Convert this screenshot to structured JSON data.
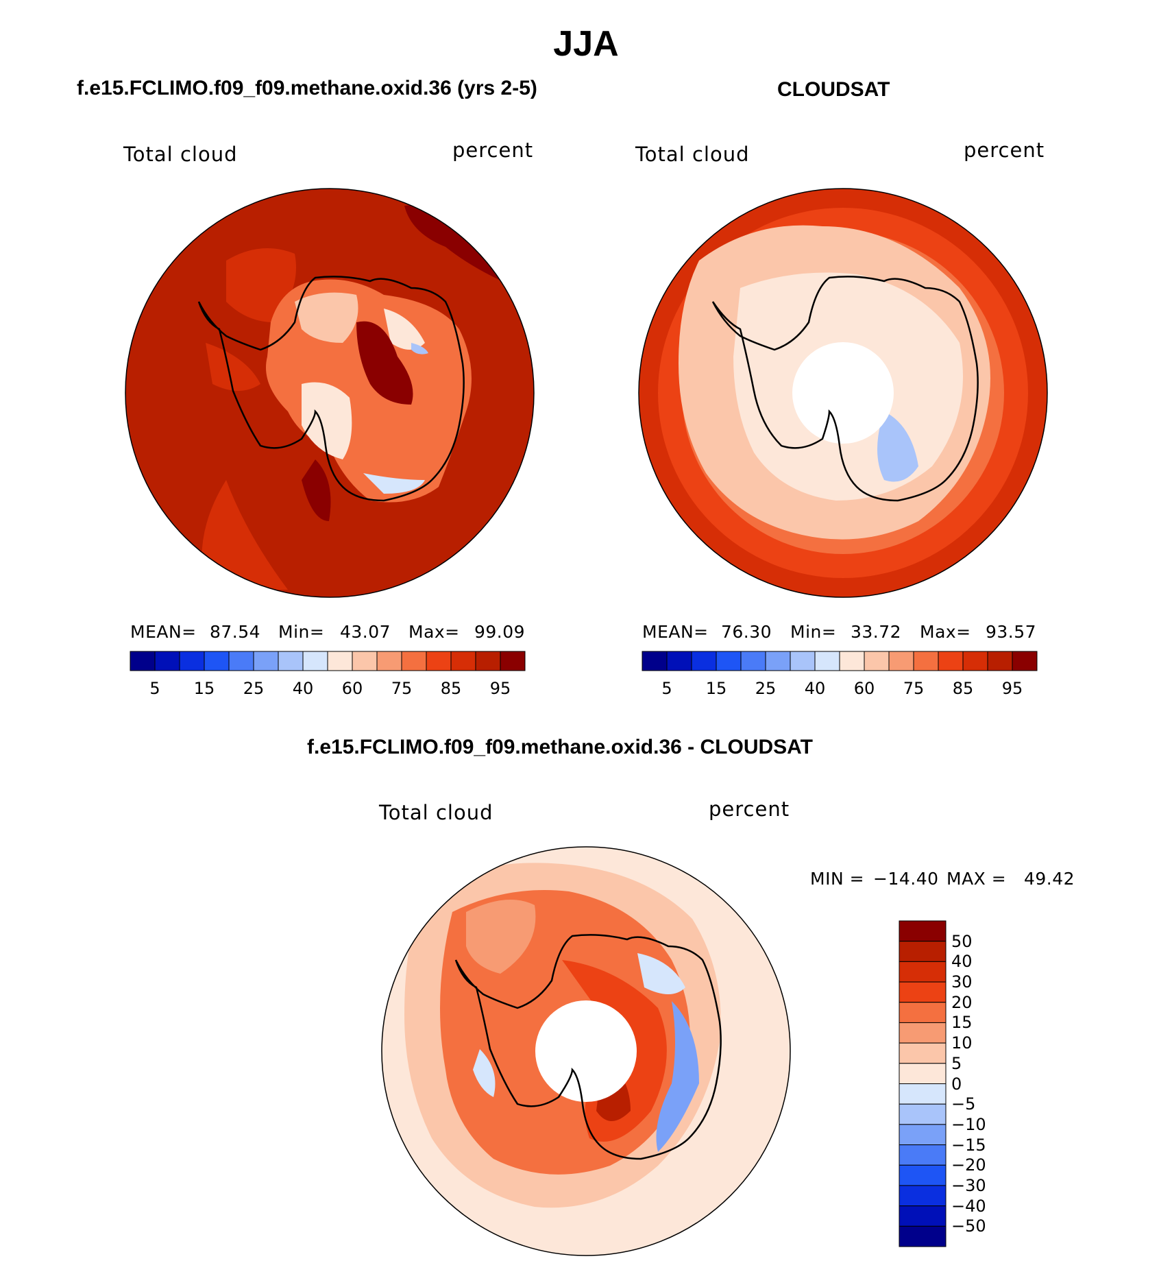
{
  "main_title": "JJA",
  "panels": [
    {
      "title": "f.e15.FCLIMO.f09_f09.methane.oxid.36 (yrs 2-5)",
      "variable": "Total cloud",
      "units": "percent",
      "mean_label": "MEAN=",
      "mean_value": "87.54",
      "min_label": "Min=",
      "min_value": "43.07",
      "max_label": "Max=",
      "max_value": "99.09"
    },
    {
      "title": "CLOUDSAT",
      "variable": "Total cloud",
      "units": "percent",
      "mean_label": "MEAN=",
      "mean_value": "76.30",
      "min_label": "Min=",
      "min_value": "33.72",
      "max_label": "Max=",
      "max_value": "93.57"
    }
  ],
  "colorbar": {
    "colors": [
      "#00008b",
      "#0010b8",
      "#0a2fe0",
      "#1e55f5",
      "#4a7bf7",
      "#7aa1f8",
      "#a9c4fa",
      "#d6e6fc",
      "#fde7d9",
      "#fbc6aa",
      "#f79b73",
      "#f47040",
      "#ec4214",
      "#d62e06",
      "#b81f00",
      "#8a0000"
    ],
    "ticks": [
      "5",
      "15",
      "25",
      "40",
      "60",
      "75",
      "85",
      "95"
    ]
  },
  "diff_panel": {
    "title": "f.e15.FCLIMO.f09_f09.methane.oxid.36 - CLOUDSAT",
    "variable": "Total cloud",
    "units": "percent",
    "min_label": "MIN =",
    "min_value": "−14.40",
    "max_label": "MAX =",
    "max_value": "49.42",
    "colors": [
      "#8a0000",
      "#b81f00",
      "#d62e06",
      "#ec4214",
      "#f47040",
      "#f79b73",
      "#fbc6aa",
      "#fde7d9",
      "#d6e6fc",
      "#a9c4fa",
      "#7aa1f8",
      "#4a7bf7",
      "#1e55f5",
      "#0a2fe0",
      "#0010b8",
      "#00008b"
    ],
    "ticks": [
      "50",
      "40",
      "30",
      "20",
      "15",
      "10",
      "5",
      "0",
      "−5",
      "−10",
      "−15",
      "−20",
      "−30",
      "−40",
      "−50"
    ]
  }
}
